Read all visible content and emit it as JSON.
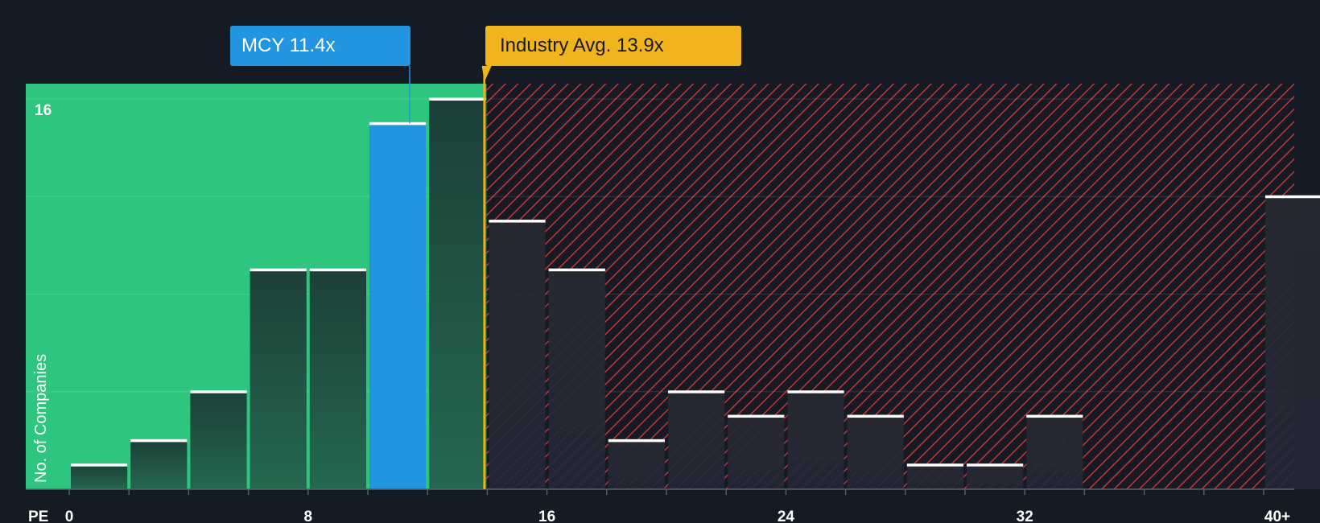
{
  "chart_data": {
    "type": "bar",
    "xlabel": "PE",
    "ylabel": "No. of Companies",
    "x_ticks": [
      "0",
      "8",
      "16",
      "24",
      "32",
      "40+"
    ],
    "y_tick_label": "16",
    "ylim": [
      0,
      16.5
    ],
    "bin_width": 2,
    "bins": [
      {
        "from": 0,
        "to": 2,
        "count": 1
      },
      {
        "from": 2,
        "to": 4,
        "count": 2
      },
      {
        "from": 4,
        "to": 6,
        "count": 4
      },
      {
        "from": 6,
        "to": 8,
        "count": 9
      },
      {
        "from": 8,
        "to": 10,
        "count": 9
      },
      {
        "from": 10,
        "to": 12,
        "count": 15,
        "highlight": true
      },
      {
        "from": 12,
        "to": 14,
        "count": 16
      },
      {
        "from": 14,
        "to": 16,
        "count": 11
      },
      {
        "from": 16,
        "to": 18,
        "count": 9
      },
      {
        "from": 18,
        "to": 20,
        "count": 2
      },
      {
        "from": 20,
        "to": 22,
        "count": 4
      },
      {
        "from": 22,
        "to": 24,
        "count": 3
      },
      {
        "from": 24,
        "to": 26,
        "count": 4
      },
      {
        "from": 26,
        "to": 28,
        "count": 3
      },
      {
        "from": 28,
        "to": 30,
        "count": 1
      },
      {
        "from": 30,
        "to": 32,
        "count": 1
      },
      {
        "from": 32,
        "to": 34,
        "count": 3
      },
      {
        "from": 34,
        "to": 36,
        "count": 0
      },
      {
        "from": 36,
        "to": 38,
        "count": 0
      },
      {
        "from": 38,
        "to": 40,
        "count": 0
      },
      {
        "from": 40,
        "to": 42,
        "count": 12
      }
    ],
    "company": {
      "label": "MCY 11.4x",
      "value": 11.4
    },
    "industry_avg": {
      "label": "Industry Avg. 13.9x",
      "value": 13.9
    }
  },
  "colors": {
    "background": "#151b24",
    "fair_zone": "#2ec67e",
    "bar_fair": "#1f4b3f",
    "bar_highlight": "#2394e0",
    "overvalued_hatch": "#c7333c",
    "bar_overvalued": "#232530",
    "company_callout": "#2394e0",
    "industry_callout": "#f0b51c"
  }
}
